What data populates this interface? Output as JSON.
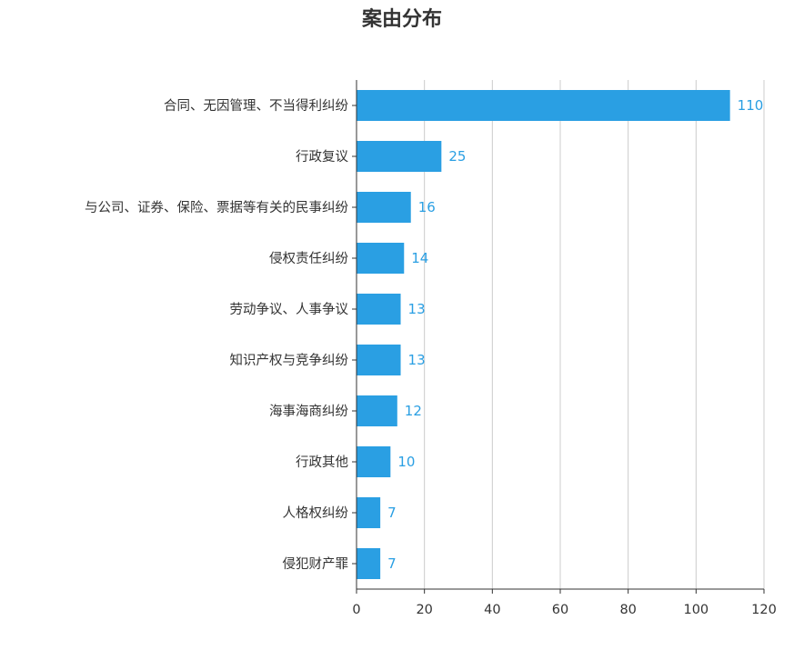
{
  "chart_data": {
    "type": "bar",
    "orientation": "horizontal",
    "title": "案由分布",
    "xlabel": "",
    "ylabel": "",
    "xlim": [
      0,
      120
    ],
    "x_ticks": [
      0,
      20,
      40,
      60,
      80,
      100,
      120
    ],
    "grid": "vertical",
    "bar_color": "#2a9fe3",
    "label_color": "#2a9fe3",
    "categories": [
      "合同、无因管理、不当得利纠纷",
      "行政复议",
      "与公司、证券、保险、票据等有关的民事纠纷",
      "侵权责任纠纷",
      "劳动争议、人事争议",
      "知识产权与竞争纠纷",
      "海事海商纠纷",
      "行政其他",
      "人格权纠纷",
      "侵犯财产罪"
    ],
    "values": [
      110,
      25,
      16,
      14,
      13,
      13,
      12,
      10,
      7,
      7
    ]
  }
}
